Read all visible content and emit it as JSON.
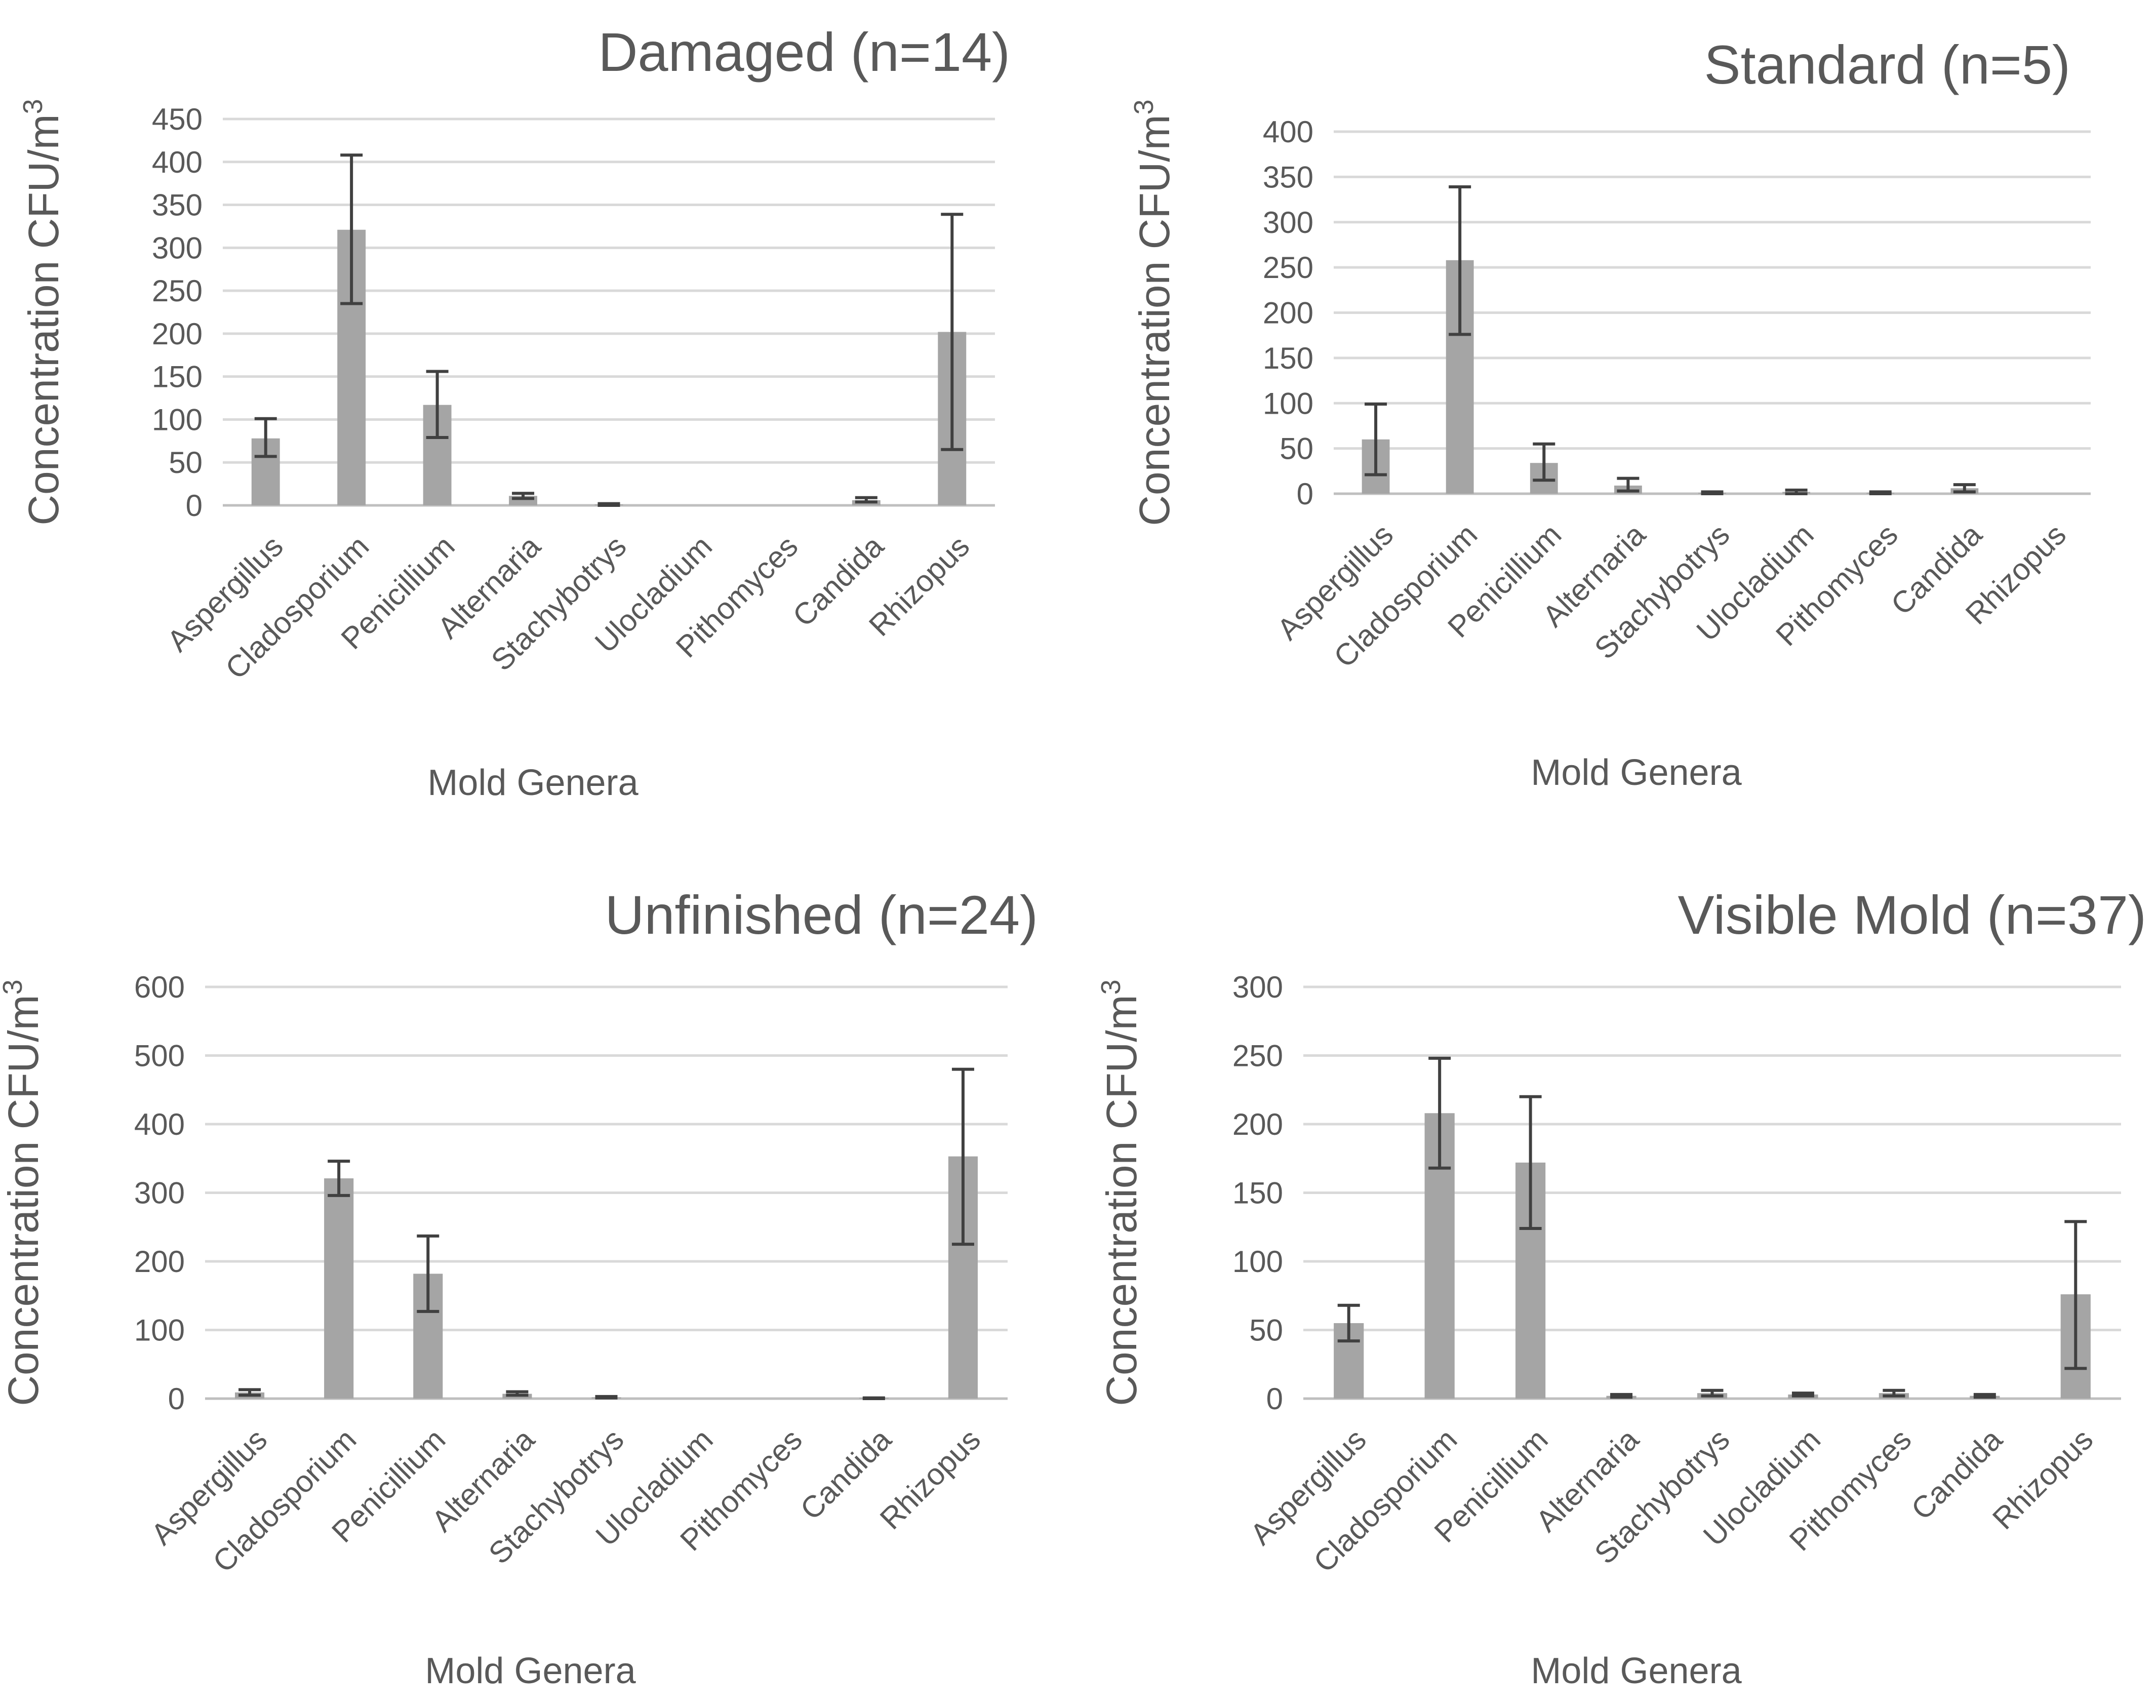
{
  "chart_data": [
    {
      "type": "bar",
      "title": "Damaged (n=14)",
      "xlabel": "Mold Genera",
      "ylabel": "Concentration CFU/m",
      "ylabel_sup": "3",
      "ylim": [
        0,
        450
      ],
      "yticks": [
        0,
        50,
        100,
        150,
        200,
        250,
        300,
        350,
        400,
        450
      ],
      "categories": [
        "Aspergillus",
        "Cladosporium",
        "Penicillium",
        "Alternaria",
        "Stachybotrys",
        "Ulocladium",
        "Pithomyces",
        "Candida",
        "Rhizopus"
      ],
      "values": [
        78,
        321,
        117,
        11,
        1,
        0,
        0,
        6,
        202
      ],
      "error_low": [
        57,
        235,
        79,
        8,
        0,
        0,
        0,
        4,
        65
      ],
      "error_high": [
        101,
        408,
        156,
        14,
        2,
        0,
        0,
        9,
        339
      ],
      "bar_color": "#a5a5a5",
      "error_color": "#404040",
      "grid": true
    },
    {
      "type": "bar",
      "title": "Standard (n=5)",
      "xlabel": "Mold Genera",
      "ylabel": "Concentration CFU/m",
      "ylabel_sup": "3",
      "ylim": [
        0,
        400
      ],
      "yticks": [
        0,
        50,
        100,
        150,
        200,
        250,
        300,
        350,
        400
      ],
      "categories": [
        "Aspergillus",
        "Cladosporium",
        "Penicillium",
        "Alternaria",
        "Stachybotrys",
        "Ulocladium",
        "Pithomyces",
        "Candida",
        "Rhizopus"
      ],
      "values": [
        60,
        258,
        34,
        9,
        1,
        2,
        1,
        6,
        0
      ],
      "error_low": [
        21,
        176,
        15,
        3,
        0,
        0,
        0,
        2,
        0
      ],
      "error_high": [
        99,
        339,
        55,
        17,
        2,
        4,
        2,
        10,
        0
      ],
      "bar_color": "#a5a5a5",
      "error_color": "#404040",
      "grid": true
    },
    {
      "type": "bar",
      "title": "Unfinished (n=24)",
      "xlabel": "Mold Genera",
      "ylabel": "Concentration CFU/m",
      "ylabel_sup": "3",
      "ylim": [
        0,
        600
      ],
      "yticks": [
        0,
        100,
        200,
        300,
        400,
        500,
        600
      ],
      "categories": [
        "Aspergillus",
        "Cladosporium",
        "Penicillium",
        "Alternaria",
        "Stachybotrys",
        "Ulocladium",
        "Pithomyces",
        "Candida",
        "Rhizopus"
      ],
      "values": [
        9,
        321,
        182,
        7,
        2,
        0,
        0,
        1,
        353
      ],
      "error_low": [
        5,
        296,
        127,
        5,
        1,
        0,
        0,
        0,
        225
      ],
      "error_high": [
        13,
        346,
        237,
        10,
        3,
        0,
        0,
        1,
        480
      ],
      "bar_color": "#a5a5a5",
      "error_color": "#404040",
      "grid": true
    },
    {
      "type": "bar",
      "title": "Visible Mold (n=37)",
      "xlabel": "Mold Genera",
      "ylabel": "Concentration CFU/m",
      "ylabel_sup": "3",
      "ylim": [
        0,
        300
      ],
      "yticks": [
        0,
        50,
        100,
        150,
        200,
        250,
        300
      ],
      "categories": [
        "Aspergillus",
        "Cladosporium",
        "Penicillium",
        "Alternaria",
        "Stachybotrys",
        "Ulocladium",
        "Pithomyces",
        "Candida",
        "Rhizopus"
      ],
      "values": [
        55,
        208,
        172,
        2,
        4,
        3,
        4,
        2,
        76
      ],
      "error_low": [
        42,
        168,
        124,
        1,
        2,
        2,
        2,
        1,
        22
      ],
      "error_high": [
        68,
        248,
        220,
        3,
        6,
        4,
        6,
        3,
        129
      ],
      "bar_color": "#a5a5a5",
      "error_color": "#404040",
      "grid": true
    }
  ]
}
